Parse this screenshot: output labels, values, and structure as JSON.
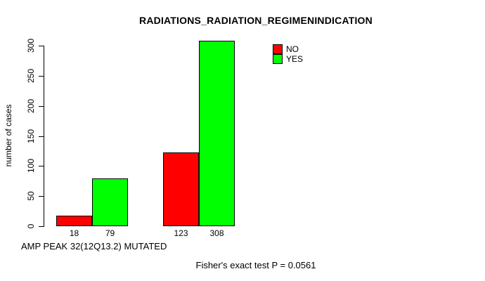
{
  "window": {
    "background": "#ffffff"
  },
  "chart_data": {
    "type": "bar",
    "title": "RADIATIONS_RADIATION_REGIMENINDICATION",
    "ylabel": "number of cases",
    "xlabel": "AMP PEAK 32(12Q13.2) MUTATED",
    "annotation": "Fisher's exact test P = 0.0561",
    "ylim": [
      0,
      300
    ],
    "yticks": [
      0,
      50,
      100,
      150,
      200,
      250,
      300
    ],
    "x_tick_labels": [
      "18",
      "79",
      "123",
      "308"
    ],
    "series": [
      {
        "name": "NO",
        "color": "#ff0000",
        "values": [
          18,
          123
        ]
      },
      {
        "name": "YES",
        "color": "#00ff00",
        "values": [
          79,
          308
        ]
      }
    ],
    "legend_position": "top-right",
    "grid": false
  }
}
